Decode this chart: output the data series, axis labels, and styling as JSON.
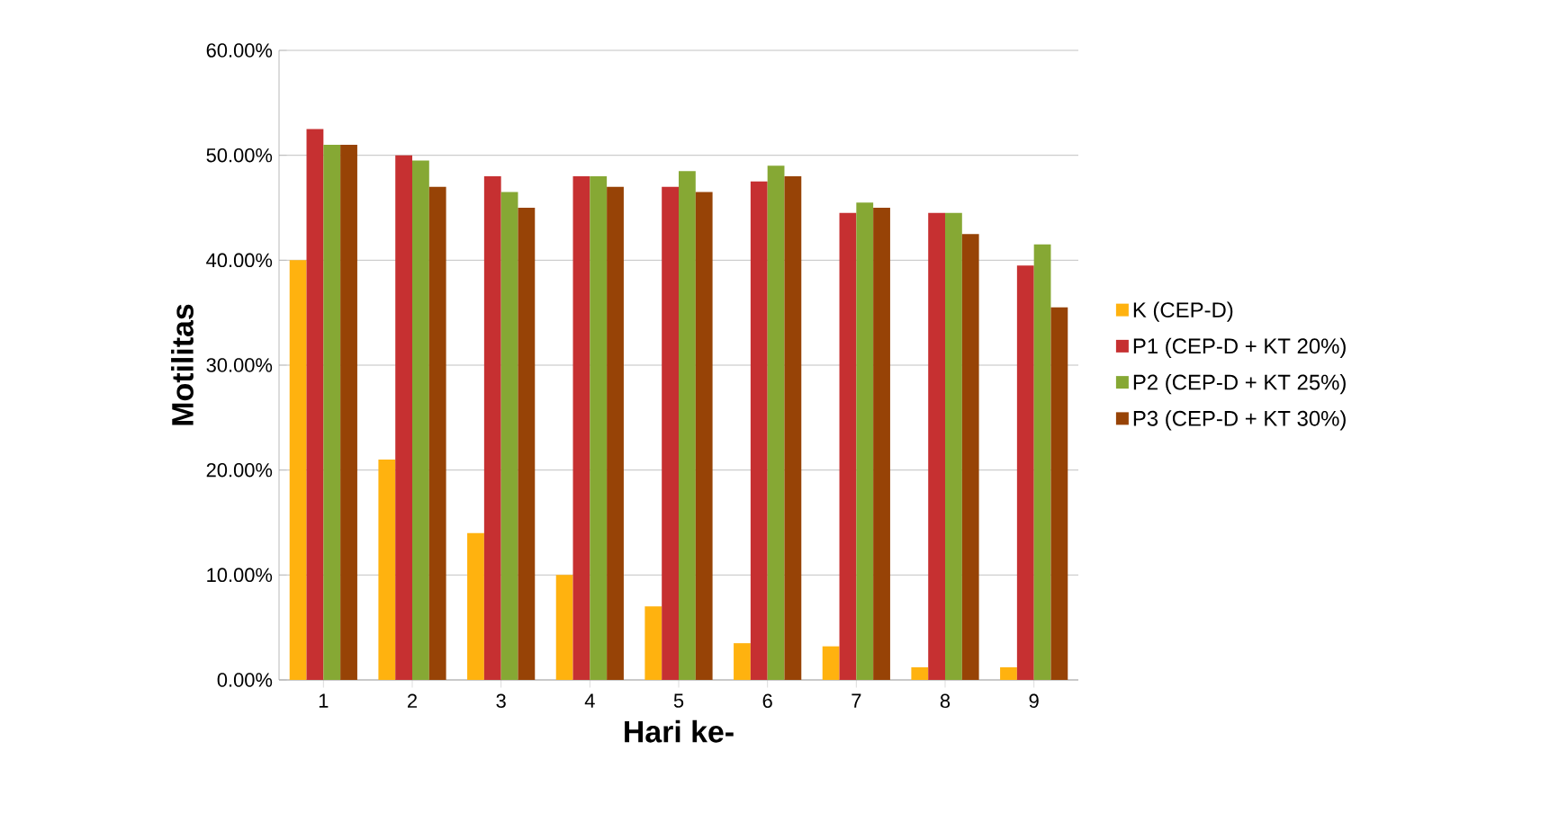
{
  "chart_data": {
    "type": "bar",
    "xlabel": "Hari ke-",
    "ylabel": "Motilitas",
    "categories": [
      "1",
      "2",
      "3",
      "4",
      "5",
      "6",
      "7",
      "8",
      "9"
    ],
    "series": [
      {
        "name": "K (CEP-D)",
        "color": "#ffb20f",
        "values": [
          40,
          21,
          14,
          10,
          7,
          3.5,
          3.2,
          1.2,
          1.2
        ]
      },
      {
        "name": "P1 (CEP-D + KT 20%)",
        "color": "#c63031",
        "values": [
          52.5,
          50,
          48,
          48,
          47,
          47.5,
          44.5,
          44.5,
          39.5
        ]
      },
      {
        "name": "P2 (CEP-D + KT 25%)",
        "color": "#86a834",
        "values": [
          51,
          49.5,
          46.5,
          48,
          48.5,
          49,
          45.5,
          44.5,
          41.5
        ]
      },
      {
        "name": "P3 (CEP-D + KT 30%)",
        "color": "#974306",
        "values": [
          51,
          47,
          45,
          47,
          46.5,
          48,
          45,
          42.5,
          35.5
        ]
      }
    ],
    "ylim": [
      0,
      60
    ],
    "yticks": [
      {
        "value": 0,
        "label": "0.00%"
      },
      {
        "value": 10,
        "label": "10.00%"
      },
      {
        "value": 20,
        "label": "20.00%"
      },
      {
        "value": 30,
        "label": "30.00%"
      },
      {
        "value": 40,
        "label": "40.00%"
      },
      {
        "value": 50,
        "label": "50.00%"
      },
      {
        "value": 60,
        "label": "60.00%"
      }
    ],
    "grid": "y",
    "legend": "right"
  }
}
